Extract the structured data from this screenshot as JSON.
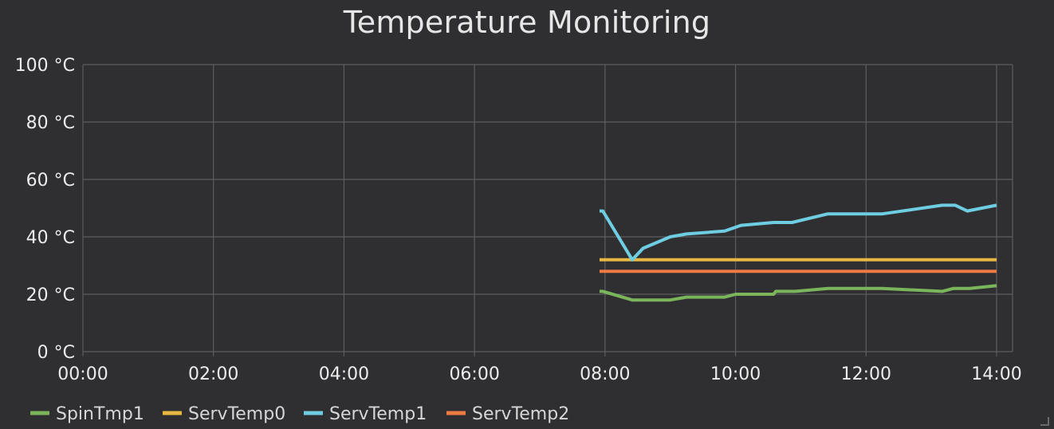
{
  "chart_data": {
    "type": "line",
    "title": "Temperature Monitoring",
    "xlabel": "",
    "ylabel": "",
    "y_unit": "°C",
    "ylim": [
      0,
      100
    ],
    "y_ticks": [
      0,
      20,
      40,
      60,
      80,
      100
    ],
    "y_tick_labels": [
      "0 °C",
      "20 °C",
      "40 °C",
      "60 °C",
      "80 °C",
      "100 °C"
    ],
    "xlim": [
      "00:00",
      "14:00"
    ],
    "x_ticks": [
      "00:00",
      "02:00",
      "04:00",
      "06:00",
      "08:00",
      "10:00",
      "12:00",
      "14:00"
    ],
    "grid": true,
    "legend_position": "bottom-left",
    "series": [
      {
        "name": "SpinTmp1",
        "color": "#7ab55c",
        "points": [
          [
            "07:55",
            21
          ],
          [
            "07:58",
            21
          ],
          [
            "08:25",
            18
          ],
          [
            "09:00",
            18
          ],
          [
            "09:15",
            19
          ],
          [
            "09:50",
            19
          ],
          [
            "10:00",
            20
          ],
          [
            "10:35",
            20
          ],
          [
            "10:37",
            21
          ],
          [
            "10:55",
            21
          ],
          [
            "11:25",
            22
          ],
          [
            "12:15",
            22
          ],
          [
            "13:10",
            21
          ],
          [
            "13:20",
            22
          ],
          [
            "13:35",
            22
          ],
          [
            "14:00",
            23
          ]
        ]
      },
      {
        "name": "ServTemp0",
        "color": "#e8b642",
        "points": [
          [
            "07:55",
            32
          ],
          [
            "14:00",
            32
          ]
        ]
      },
      {
        "name": "ServTemp1",
        "color": "#6fcde2",
        "points": [
          [
            "07:55",
            49
          ],
          [
            "07:58",
            49
          ],
          [
            "08:25",
            32
          ],
          [
            "08:35",
            36
          ],
          [
            "09:00",
            40
          ],
          [
            "09:15",
            41
          ],
          [
            "09:50",
            42
          ],
          [
            "10:05",
            44
          ],
          [
            "10:35",
            45
          ],
          [
            "10:52",
            45
          ],
          [
            "11:25",
            48
          ],
          [
            "12:15",
            48
          ],
          [
            "13:10",
            51
          ],
          [
            "13:22",
            51
          ],
          [
            "13:33",
            49
          ],
          [
            "14:00",
            51
          ]
        ]
      },
      {
        "name": "ServTemp2",
        "color": "#ee7a44",
        "points": [
          [
            "07:55",
            28
          ],
          [
            "14:00",
            28
          ]
        ]
      }
    ]
  }
}
